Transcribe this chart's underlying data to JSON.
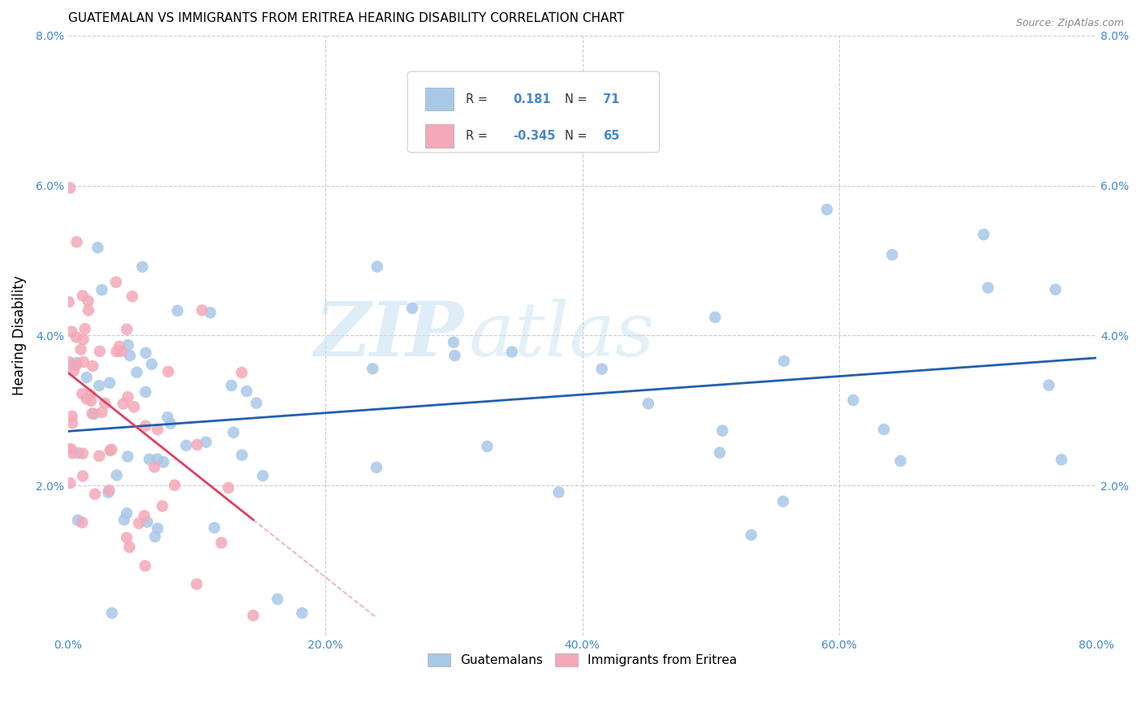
{
  "title": "GUATEMALAN VS IMMIGRANTS FROM ERITREA HEARING DISABILITY CORRELATION CHART",
  "source": "Source: ZipAtlas.com",
  "ylabel": "Hearing Disability",
  "legend_label1": "Guatemalans",
  "legend_label2": "Immigrants from Eritrea",
  "r1": 0.181,
  "n1": 71,
  "r2": -0.345,
  "n2": 65,
  "color_blue": "#a8c8e8",
  "color_pink": "#f4a8b8",
  "color_blue_line": "#2060b0",
  "color_pink_line": "#e04060",
  "watermark_zip": "ZIP",
  "watermark_atlas": "atlas",
  "xmin": 0.0,
  "xmax": 80.0,
  "ymin": 0.0,
  "ymax": 8.0,
  "x_ticks": [
    0,
    20,
    40,
    60,
    80
  ],
  "y_ticks": [
    0,
    2,
    4,
    6,
    8
  ],
  "grid_color": "#cccccc",
  "title_fontsize": 11,
  "source_fontsize": 9,
  "tick_fontsize": 10,
  "tick_color": "#4488cc"
}
